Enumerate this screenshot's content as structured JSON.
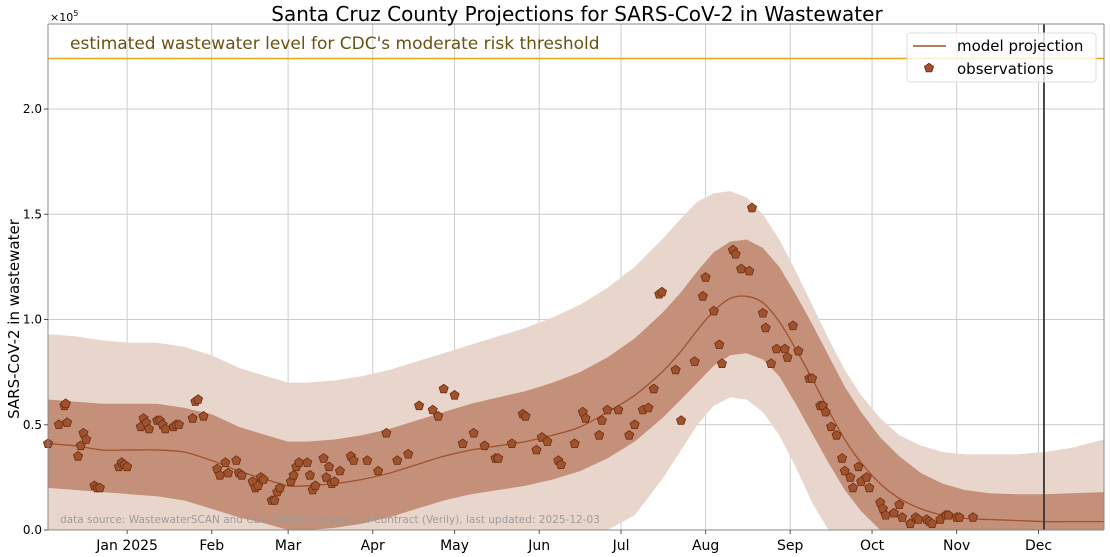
{
  "chart_data": {
    "type": "line",
    "title": "Santa Cruz County Projections for SARS-CoV-2 in Wastewater",
    "ylabel": "SARS-CoV-2 in wastewater",
    "xlabel": "",
    "y_scale_label": "×10",
    "y_scale_exponent": "5",
    "y_units_multiplier": 100000,
    "ylim": [
      0,
      2.3
    ],
    "x_domain": {
      "start": "2024-12-03",
      "end": "2025-12-25",
      "unit": "days since start date"
    },
    "x_range_days": [
      0,
      387
    ],
    "grid": true,
    "legend_position": "top-right",
    "y_ticks": [
      {
        "value": 0.0,
        "label": "0.0"
      },
      {
        "value": 0.5,
        "label": "0.5"
      },
      {
        "value": 1.0,
        "label": "1.0"
      },
      {
        "value": 1.5,
        "label": "1.5"
      },
      {
        "value": 2.0,
        "label": "2.0"
      }
    ],
    "x_ticks": [
      {
        "day": 29,
        "label": "Jan 2025"
      },
      {
        "day": 60,
        "label": "Feb"
      },
      {
        "day": 88,
        "label": "Mar"
      },
      {
        "day": 119,
        "label": "Apr"
      },
      {
        "day": 149,
        "label": "May"
      },
      {
        "day": 180,
        "label": "Jun"
      },
      {
        "day": 210,
        "label": "Jul"
      },
      {
        "day": 241,
        "label": "Aug"
      },
      {
        "day": 272,
        "label": "Sep"
      },
      {
        "day": 302,
        "label": "Oct"
      },
      {
        "day": 333,
        "label": "Nov"
      },
      {
        "day": 363,
        "label": "Dec"
      }
    ],
    "threshold": {
      "value": 2.24,
      "label": "estimated wastewater level for CDC's moderate risk threshold",
      "color": "#e6a817",
      "text_color": "#6b5212"
    },
    "current_date_line": {
      "day": 365,
      "color": "#333333"
    },
    "annotation": "data source: WastewaterSCAN and CDC NWSS Commercial Contract (Verily), last updated: 2025-12-03",
    "legend": [
      {
        "label": "model projection",
        "kind": "line"
      },
      {
        "label": "observations",
        "kind": "marker"
      }
    ],
    "colors": {
      "line": "#a0522d",
      "marker_fill": "#a0522d",
      "marker_edge": "#6b2e12",
      "inner_band": "#c49079",
      "outer_band": "#e8d6cc"
    },
    "series": [
      {
        "name": "model projection",
        "x": [
          0,
          10,
          20,
          30,
          40,
          50,
          60,
          70,
          80,
          88,
          95,
          105,
          115,
          125,
          135,
          145,
          155,
          165,
          175,
          185,
          195,
          205,
          215,
          225,
          232,
          238,
          244,
          250,
          256,
          262,
          268,
          274,
          280,
          286,
          292,
          298,
          305,
          312,
          320,
          328,
          336,
          345,
          355,
          365,
          375,
          387
        ],
        "y": [
          0.41,
          0.4,
          0.38,
          0.38,
          0.38,
          0.37,
          0.33,
          0.28,
          0.24,
          0.21,
          0.21,
          0.22,
          0.24,
          0.27,
          0.31,
          0.35,
          0.38,
          0.4,
          0.42,
          0.45,
          0.49,
          0.56,
          0.64,
          0.75,
          0.85,
          0.95,
          1.04,
          1.1,
          1.11,
          1.08,
          0.99,
          0.86,
          0.72,
          0.57,
          0.43,
          0.32,
          0.22,
          0.15,
          0.1,
          0.07,
          0.055,
          0.05,
          0.045,
          0.04,
          0.04,
          0.04
        ]
      },
      {
        "name": "inner band (upper)",
        "x": [
          0,
          10,
          20,
          30,
          40,
          50,
          60,
          70,
          80,
          88,
          95,
          105,
          115,
          125,
          135,
          145,
          155,
          165,
          175,
          185,
          195,
          205,
          215,
          225,
          232,
          238,
          244,
          250,
          256,
          262,
          268,
          274,
          280,
          286,
          292,
          298,
          305,
          312,
          320,
          328,
          336,
          345,
          355,
          365,
          375,
          387
        ],
        "y": [
          0.62,
          0.61,
          0.6,
          0.6,
          0.6,
          0.58,
          0.55,
          0.49,
          0.45,
          0.42,
          0.42,
          0.43,
          0.45,
          0.48,
          0.52,
          0.56,
          0.6,
          0.63,
          0.66,
          0.7,
          0.75,
          0.82,
          0.91,
          1.03,
          1.13,
          1.23,
          1.32,
          1.37,
          1.38,
          1.34,
          1.25,
          1.12,
          0.98,
          0.83,
          0.68,
          0.56,
          0.44,
          0.35,
          0.27,
          0.22,
          0.19,
          0.175,
          0.17,
          0.17,
          0.175,
          0.18
        ]
      },
      {
        "name": "inner band (lower)",
        "x": [
          0,
          10,
          20,
          30,
          40,
          50,
          60,
          70,
          80,
          88,
          95,
          105,
          115,
          125,
          135,
          145,
          155,
          165,
          175,
          185,
          195,
          205,
          215,
          225,
          232,
          238,
          244,
          250,
          256,
          262,
          268,
          274,
          280,
          286,
          292,
          298,
          305,
          312,
          320,
          328,
          336,
          345,
          355,
          365,
          375,
          387
        ],
        "y": [
          0.2,
          0.19,
          0.18,
          0.17,
          0.16,
          0.14,
          0.1,
          0.06,
          0.03,
          0.0,
          0.0,
          0.01,
          0.03,
          0.06,
          0.1,
          0.14,
          0.17,
          0.19,
          0.21,
          0.24,
          0.28,
          0.34,
          0.42,
          0.53,
          0.62,
          0.7,
          0.78,
          0.83,
          0.84,
          0.81,
          0.73,
          0.6,
          0.46,
          0.32,
          0.19,
          0.09,
          0.0,
          0.0,
          0.0,
          0.0,
          0.0,
          0.0,
          0.0,
          0.0,
          0.0,
          0.0
        ]
      },
      {
        "name": "outer band (upper)",
        "x": [
          0,
          10,
          20,
          30,
          40,
          50,
          60,
          70,
          80,
          88,
          95,
          105,
          115,
          125,
          135,
          145,
          155,
          165,
          175,
          185,
          195,
          205,
          215,
          225,
          232,
          238,
          244,
          250,
          256,
          262,
          268,
          274,
          280,
          286,
          292,
          298,
          305,
          312,
          320,
          328,
          336,
          345,
          355,
          365,
          375,
          387
        ],
        "y": [
          0.93,
          0.92,
          0.9,
          0.89,
          0.89,
          0.87,
          0.83,
          0.77,
          0.73,
          0.7,
          0.7,
          0.71,
          0.73,
          0.76,
          0.8,
          0.84,
          0.88,
          0.92,
          0.96,
          1.01,
          1.07,
          1.15,
          1.25,
          1.38,
          1.48,
          1.56,
          1.6,
          1.61,
          1.58,
          1.5,
          1.38,
          1.23,
          1.07,
          0.91,
          0.76,
          0.64,
          0.53,
          0.45,
          0.4,
          0.37,
          0.36,
          0.36,
          0.36,
          0.37,
          0.39,
          0.43
        ]
      },
      {
        "name": "outer band (lower)",
        "x": [
          0,
          10,
          20,
          30,
          40,
          50,
          60,
          70,
          80,
          88,
          95,
          105,
          115,
          125,
          135,
          145,
          155,
          165,
          175,
          185,
          195,
          205,
          215,
          225,
          232,
          238,
          244,
          250,
          256,
          262,
          268,
          274,
          280,
          286,
          292,
          298,
          305,
          312,
          320,
          328,
          336,
          345,
          355,
          365,
          375,
          387
        ],
        "y": [
          0.0,
          0.0,
          0.0,
          0.0,
          0.0,
          0.0,
          0.0,
          0.0,
          0.0,
          0.0,
          0.0,
          0.0,
          0.0,
          0.0,
          0.0,
          0.0,
          0.0,
          0.0,
          0.0,
          0.0,
          0.0,
          0.0,
          0.07,
          0.24,
          0.38,
          0.5,
          0.59,
          0.63,
          0.62,
          0.56,
          0.45,
          0.3,
          0.13,
          0.0,
          0.0,
          0.0,
          0.0,
          0.0,
          0.0,
          0.0,
          0.0,
          0.0,
          0.0,
          0.0,
          0.0,
          0.0
        ]
      },
      {
        "name": "observations",
        "points": [
          [
            0,
            0.41
          ],
          [
            4,
            0.5
          ],
          [
            6,
            0.59
          ],
          [
            6.5,
            0.6
          ],
          [
            7,
            0.51
          ],
          [
            11,
            0.35
          ],
          [
            12,
            0.4
          ],
          [
            13,
            0.46
          ],
          [
            14,
            0.43
          ],
          [
            17,
            0.21
          ],
          [
            18,
            0.2
          ],
          [
            19,
            0.2
          ],
          [
            26,
            0.3
          ],
          [
            27,
            0.32
          ],
          [
            28,
            0.31
          ],
          [
            29,
            0.3
          ],
          [
            34,
            0.49
          ],
          [
            35,
            0.53
          ],
          [
            36,
            0.51
          ],
          [
            37,
            0.48
          ],
          [
            40,
            0.52
          ],
          [
            41,
            0.52
          ],
          [
            42,
            0.5
          ],
          [
            43,
            0.48
          ],
          [
            46,
            0.49
          ],
          [
            47,
            0.5
          ],
          [
            48,
            0.5
          ],
          [
            53,
            0.53
          ],
          [
            54,
            0.61
          ],
          [
            55,
            0.62
          ],
          [
            57,
            0.54
          ],
          [
            62,
            0.29
          ],
          [
            63,
            0.26
          ],
          [
            65,
            0.32
          ],
          [
            66,
            0.27
          ],
          [
            69,
            0.33
          ],
          [
            70,
            0.27
          ],
          [
            71,
            0.26
          ],
          [
            75,
            0.23
          ],
          [
            76,
            0.2
          ],
          [
            77,
            0.21
          ],
          [
            78,
            0.25
          ],
          [
            79,
            0.24
          ],
          [
            82,
            0.14
          ],
          [
            83,
            0.14
          ],
          [
            84,
            0.18
          ],
          [
            85,
            0.2
          ],
          [
            89,
            0.23
          ],
          [
            90,
            0.26
          ],
          [
            91,
            0.3
          ],
          [
            92,
            0.32
          ],
          [
            95,
            0.32
          ],
          [
            96,
            0.26
          ],
          [
            97,
            0.19
          ],
          [
            98,
            0.21
          ],
          [
            101,
            0.34
          ],
          [
            102,
            0.25
          ],
          [
            103,
            0.3
          ],
          [
            104,
            0.22
          ],
          [
            105,
            0.23
          ],
          [
            107,
            0.28
          ],
          [
            111,
            0.35
          ],
          [
            112,
            0.33
          ],
          [
            117,
            0.33
          ],
          [
            121,
            0.28
          ],
          [
            124,
            0.46
          ],
          [
            128,
            0.33
          ],
          [
            132,
            0.36
          ],
          [
            136,
            0.59
          ],
          [
            141,
            0.57
          ],
          [
            143,
            0.54
          ],
          [
            145,
            0.67
          ],
          [
            149,
            0.64
          ],
          [
            152,
            0.41
          ],
          [
            156,
            0.46
          ],
          [
            160,
            0.4
          ],
          [
            164,
            0.34
          ],
          [
            165,
            0.34
          ],
          [
            170,
            0.41
          ],
          [
            174,
            0.55
          ],
          [
            175,
            0.54
          ],
          [
            179,
            0.38
          ],
          [
            181,
            0.44
          ],
          [
            183,
            0.42
          ],
          [
            187,
            0.33
          ],
          [
            188,
            0.31
          ],
          [
            193,
            0.41
          ],
          [
            196,
            0.56
          ],
          [
            197,
            0.53
          ],
          [
            202,
            0.45
          ],
          [
            203,
            0.52
          ],
          [
            205,
            0.57
          ],
          [
            209,
            0.57
          ],
          [
            213,
            0.45
          ],
          [
            215,
            0.5
          ],
          [
            218,
            0.57
          ],
          [
            220,
            0.58
          ],
          [
            222,
            0.67
          ],
          [
            224,
            1.12
          ],
          [
            225,
            1.13
          ],
          [
            230,
            0.76
          ],
          [
            232,
            0.52
          ],
          [
            237,
            0.8
          ],
          [
            240,
            1.11
          ],
          [
            241,
            1.2
          ],
          [
            244,
            1.04
          ],
          [
            246,
            0.88
          ],
          [
            247,
            0.79
          ],
          [
            251,
            1.33
          ],
          [
            252,
            1.31
          ],
          [
            254,
            1.24
          ],
          [
            257,
            1.23
          ],
          [
            258,
            1.53
          ],
          [
            262,
            1.03
          ],
          [
            263,
            0.96
          ],
          [
            265,
            0.79
          ],
          [
            267,
            0.86
          ],
          [
            270,
            0.86
          ],
          [
            271,
            0.82
          ],
          [
            273,
            0.97
          ],
          [
            275,
            0.85
          ],
          [
            279,
            0.72
          ],
          [
            280,
            0.72
          ],
          [
            283,
            0.59
          ],
          [
            284,
            0.59
          ],
          [
            285,
            0.56
          ],
          [
            287,
            0.49
          ],
          [
            289,
            0.45
          ],
          [
            291,
            0.34
          ],
          [
            292,
            0.28
          ],
          [
            294,
            0.25
          ],
          [
            295,
            0.2
          ],
          [
            297,
            0.3
          ],
          [
            298,
            0.23
          ],
          [
            300,
            0.25
          ],
          [
            301,
            0.2
          ],
          [
            305,
            0.13
          ],
          [
            306,
            0.1
          ],
          [
            307,
            0.07
          ],
          [
            310,
            0.08
          ],
          [
            312,
            0.12
          ],
          [
            313,
            0.06
          ],
          [
            316,
            0.03
          ],
          [
            318,
            0.06
          ],
          [
            319,
            0.05
          ],
          [
            322,
            0.05
          ],
          [
            323,
            0.04
          ],
          [
            324,
            0.03
          ],
          [
            327,
            0.05
          ],
          [
            329,
            0.07
          ],
          [
            330,
            0.07
          ],
          [
            333,
            0.06
          ],
          [
            334,
            0.06
          ],
          [
            339,
            0.06
          ]
        ]
      }
    ]
  }
}
